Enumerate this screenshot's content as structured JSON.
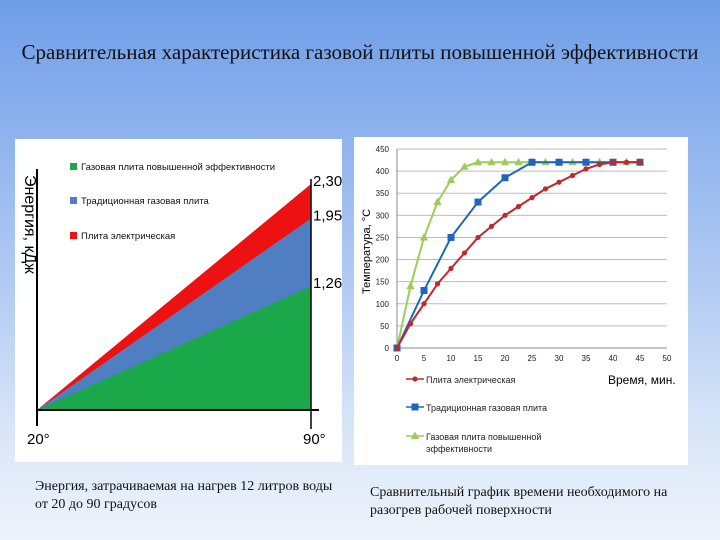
{
  "title": "Сравнительная характеристика газовой плиты повышенной эффективности",
  "colors": {
    "green": "#1aa84a",
    "blue": "#4f7fc2",
    "red": "#ee1111",
    "series_red": "#c0282b",
    "series_blue": "#1f65c0",
    "series_green": "#9ccc5a"
  },
  "left_caption": "Энергия, затрачиваемая на нагрев 12 литров воды от 20 до 90 градусов",
  "right_caption": "Сравнительный график времени необходимого на разогрев рабочей поверхности",
  "chart_data": [
    {
      "type": "area",
      "ylabel": "Энергия, кДж",
      "x": [
        "20°",
        "90°"
      ],
      "series": [
        {
          "name": "Газовая плита повышенной эффективности",
          "values": [
            0,
            1.26
          ]
        },
        {
          "name": "Традиционная газовая плита",
          "values": [
            0,
            1.95
          ]
        },
        {
          "name": "Плита электрическая",
          "values": [
            0,
            2.3
          ]
        }
      ],
      "value_labels": [
        "2,30",
        "1,95",
        "1,26"
      ],
      "legend_position": "top-left"
    },
    {
      "type": "line",
      "xlabel": "Время, мин.",
      "ylabel": "Температура, °С",
      "xlim": [
        0,
        50
      ],
      "ylim": [
        0,
        450
      ],
      "xticks": [
        0,
        5,
        10,
        15,
        20,
        25,
        30,
        35,
        40,
        45,
        50
      ],
      "yticks": [
        0,
        50,
        100,
        150,
        200,
        250,
        300,
        350,
        400,
        450
      ],
      "grid": true,
      "legend_position": "bottom",
      "series": [
        {
          "name": "Плита электрическая",
          "marker": "circle",
          "x": [
            0,
            2.5,
            5,
            7.5,
            10,
            12.5,
            15,
            17.5,
            20,
            22.5,
            25,
            27.5,
            30,
            32.5,
            35,
            37.5,
            40,
            42.5,
            45
          ],
          "y": [
            0,
            55,
            100,
            145,
            180,
            215,
            250,
            275,
            300,
            320,
            340,
            360,
            375,
            390,
            405,
            415,
            420,
            420,
            420
          ]
        },
        {
          "name": "Традиционная газовая плита",
          "marker": "square",
          "x": [
            0,
            5,
            10,
            15,
            20,
            25,
            30,
            35,
            40,
            45
          ],
          "y": [
            0,
            130,
            250,
            330,
            385,
            420,
            420,
            420,
            420,
            420
          ]
        },
        {
          "name": "Газовая плита повышенной эффективности",
          "marker": "triangle",
          "x": [
            0,
            2.5,
            5,
            7.5,
            10,
            12.5,
            15,
            17.5,
            20,
            22.5,
            25,
            27.5,
            30,
            32.5,
            35,
            37.5,
            40,
            42.5,
            45
          ],
          "y": [
            0,
            140,
            250,
            330,
            380,
            410,
            420,
            420,
            420,
            420,
            420,
            420,
            420,
            420,
            420,
            420,
            420,
            420,
            420
          ]
        }
      ]
    }
  ]
}
